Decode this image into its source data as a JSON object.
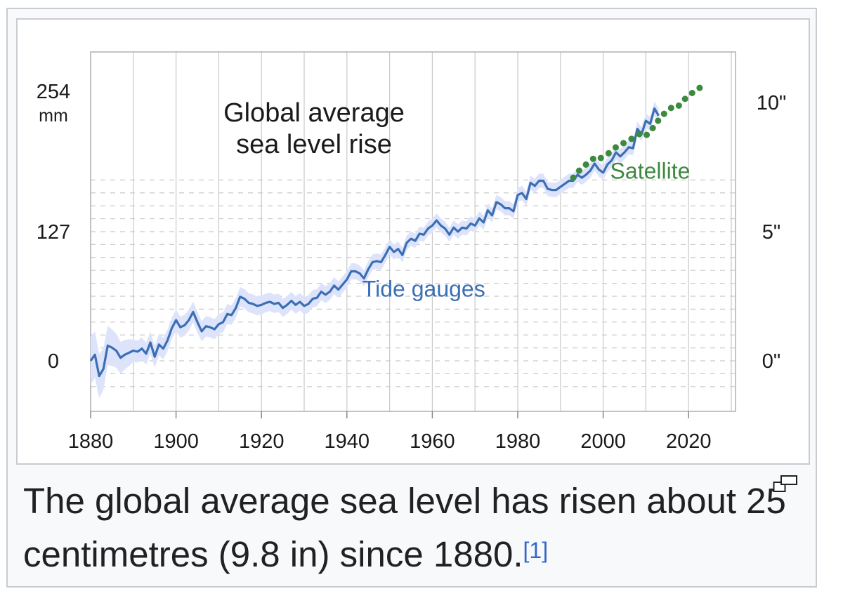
{
  "caption": {
    "text": "The global average sea level has risen about 25 centimetres (9.8 in) since 1880.",
    "reference": "[1]"
  },
  "magnify_icon": "magnify-clip-icon",
  "colors": {
    "tide": "#3b6fb4",
    "tide_band": "#dde3fb",
    "satellite": "#3d8a3f",
    "grid": "#c9c9c9",
    "text": "#1a1a1a"
  },
  "chart_data": {
    "type": "line",
    "title_lines": [
      "Global average",
      "sea level rise"
    ],
    "xlabel": "",
    "ylabel": "",
    "left_unit": "mm",
    "left_ticks": [
      {
        "value": 0,
        "label": "0"
      },
      {
        "value": 127,
        "label": "127"
      },
      {
        "value": 254,
        "label": "254"
      }
    ],
    "right_ticks": [
      {
        "value": 0,
        "label": "0\""
      },
      {
        "value": 127,
        "label": "5\""
      },
      {
        "value": 254,
        "label": "10\""
      }
    ],
    "x_ticks": [
      1880,
      1900,
      1920,
      1940,
      1960,
      1980,
      2000,
      2020
    ],
    "xlim": [
      1880,
      2033
    ],
    "ylim": [
      -50,
      305
    ],
    "grid": true,
    "series": [
      {
        "name": "Tide gauges",
        "style": "solid",
        "x": [
          1880,
          1881,
          1882,
          1883,
          1884,
          1885,
          1886,
          1887,
          1888,
          1889,
          1890,
          1891,
          1892,
          1893,
          1894,
          1895,
          1896,
          1897,
          1898,
          1899,
          1900,
          1901,
          1902,
          1903,
          1904,
          1905,
          1906,
          1907,
          1908,
          1909,
          1910,
          1911,
          1912,
          1913,
          1914,
          1915,
          1916,
          1917,
          1918,
          1919,
          1920,
          1921,
          1922,
          1923,
          1924,
          1925,
          1926,
          1927,
          1928,
          1929,
          1930,
          1931,
          1932,
          1933,
          1934,
          1935,
          1936,
          1937,
          1938,
          1939,
          1940,
          1941,
          1942,
          1943,
          1944,
          1945,
          1946,
          1947,
          1948,
          1949,
          1950,
          1951,
          1952,
          1953,
          1954,
          1955,
          1956,
          1957,
          1958,
          1959,
          1960,
          1961,
          1962,
          1963,
          1964,
          1965,
          1966,
          1967,
          1968,
          1969,
          1970,
          1971,
          1972,
          1973,
          1974,
          1975,
          1976,
          1977,
          1978,
          1979,
          1980,
          1981,
          1982,
          1983,
          1984,
          1985,
          1986,
          1987,
          1988,
          1989,
          1990,
          1991,
          1992,
          1993,
          1994,
          1995,
          1996,
          1997,
          1998,
          1999,
          2000,
          2001,
          2002,
          2003,
          2004,
          2005,
          2006,
          2007,
          2008,
          2009,
          2010,
          2011,
          2012,
          2013
        ],
        "values": [
          0,
          6,
          -15,
          -8,
          15,
          13,
          10,
          3,
          6,
          8,
          10,
          9,
          12,
          7,
          18,
          4,
          16,
          12,
          20,
          32,
          40,
          33,
          35,
          40,
          48,
          38,
          29,
          34,
          33,
          31,
          36,
          38,
          46,
          45,
          52,
          63,
          61,
          57,
          56,
          54,
          55,
          57,
          58,
          56,
          57,
          52,
          55,
          59,
          55,
          58,
          54,
          56,
          61,
          62,
          68,
          65,
          68,
          74,
          70,
          75,
          80,
          88,
          88,
          86,
          81,
          90,
          97,
          98,
          97,
          104,
          112,
          107,
          110,
          104,
          116,
          120,
          118,
          125,
          124,
          130,
          133,
          138,
          133,
          130,
          124,
          131,
          127,
          131,
          130,
          135,
          133,
          140,
          136,
          148,
          143,
          156,
          154,
          150,
          150,
          147,
          163,
          165,
          159,
          175,
          172,
          177,
          177,
          169,
          168,
          168,
          171,
          174,
          177,
          177,
          183,
          180,
          183,
          187,
          194,
          188,
          185,
          193,
          197,
          205,
          201,
          205,
          210,
          209,
          228,
          223,
          236,
          233,
          248,
          241
        ],
        "label_position": {
          "x": 1958,
          "y": 63
        }
      },
      {
        "name": "Satellite",
        "style": "dotted",
        "x": [
          1993,
          1994,
          1995,
          1996,
          1997,
          1998,
          1999,
          2000,
          2001,
          2002,
          2003,
          2004,
          2005,
          2006,
          2007,
          2008,
          2009,
          2010,
          2011,
          2012,
          2013,
          2014,
          2015,
          2016,
          2017,
          2018,
          2019,
          2020,
          2021,
          2022,
          2023
        ],
        "values": [
          180,
          185,
          190,
          193,
          196,
          200,
          198,
          201,
          203,
          207,
          210,
          211,
          215,
          217,
          219,
          222,
          224,
          221,
          227,
          230,
          237,
          242,
          245,
          249,
          248,
          252,
          257,
          260,
          264,
          266,
          270
        ],
        "label_position": {
          "x": 2011,
          "y": 179
        }
      }
    ]
  }
}
